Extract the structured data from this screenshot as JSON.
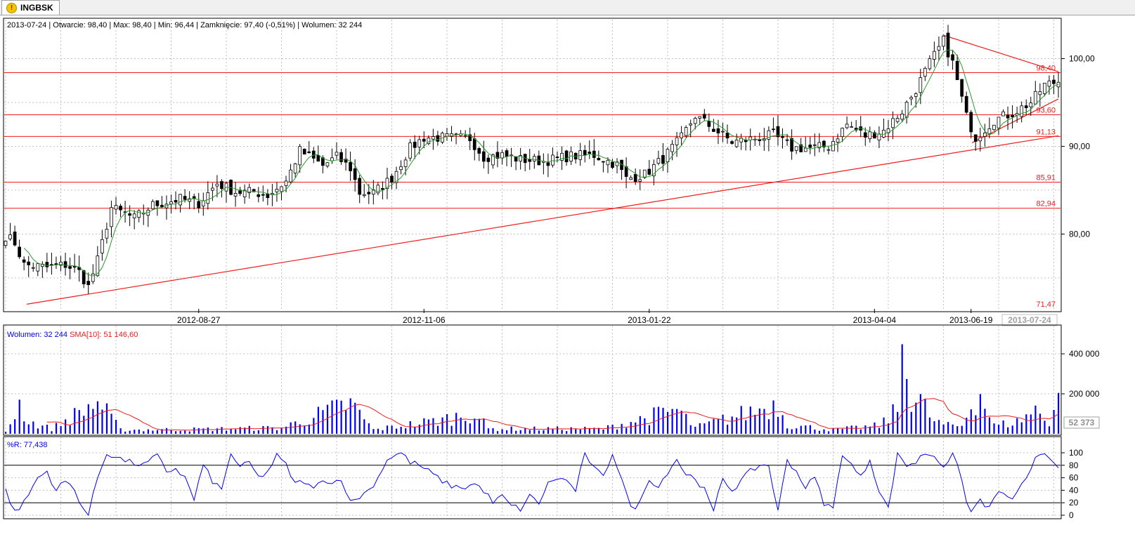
{
  "tab": {
    "label": "INGBSK",
    "icon": "warning-icon"
  },
  "header": {
    "date": "2013-07-24",
    "open_label": "Otwarcie: 98,40",
    "max_label": "Max: 98,40",
    "min_label": "Min: 96,44",
    "close_label": "Zamknięcie: 97,40 (-0,51%)",
    "volume_label": "Wolumen: 32 244"
  },
  "colors": {
    "candle": "#000000",
    "sma_price": "#2a9a2a",
    "support_lines": "#ee1c1c",
    "volume_bars": "#0000ee",
    "volume_sma": "#ee1c1c",
    "williams_r": "#0000ee",
    "grid": "#c0c0c0"
  },
  "chart_data": [
    {
      "type": "candlestick",
      "x_ticks": [
        "2012-08-27",
        "2012-11-06",
        "2013-01-22",
        "2013-04-04",
        "2013-06-19"
      ],
      "x_end_label": "2013-07-24",
      "y_ticks": [
        "100,00",
        "90,00",
        "80,00"
      ],
      "ylim": [
        71.47,
        103.0
      ],
      "horizontal_levels": [
        {
          "value": 98.4,
          "label": "98,40"
        },
        {
          "value": 93.6,
          "label": "93,60"
        },
        {
          "value": 91.13,
          "label": "91,13"
        },
        {
          "value": 85.91,
          "label": "85,91"
        },
        {
          "value": 82.94,
          "label": "82,94"
        },
        {
          "value": 71.47,
          "label": "71,47"
        }
      ],
      "trendlines": [
        {
          "from": [
            0.02,
            72.0
          ],
          "to": [
            1.0,
            91.2
          ]
        },
        {
          "from": [
            0.89,
            102.7
          ],
          "to": [
            1.0,
            98.5
          ]
        },
        {
          "from": [
            0.918,
            90.4
          ],
          "to": [
            1.0,
            95.4
          ]
        }
      ],
      "n_sessions": 230,
      "close_anchors": [
        [
          0,
          79.8
        ],
        [
          2,
          79.0
        ],
        [
          4,
          76.5
        ],
        [
          9,
          76.2
        ],
        [
          13,
          76.5
        ],
        [
          16,
          75.7
        ],
        [
          18,
          74.0
        ],
        [
          20,
          77.0
        ],
        [
          23,
          83.0
        ],
        [
          28,
          81.8
        ],
        [
          32,
          83.3
        ],
        [
          38,
          84.0
        ],
        [
          42,
          83.5
        ],
        [
          46,
          85.8
        ],
        [
          50,
          84.8
        ],
        [
          54,
          84.8
        ],
        [
          57,
          84.4
        ],
        [
          61,
          86.0
        ],
        [
          64,
          89.5
        ],
        [
          69,
          87.8
        ],
        [
          72,
          88.8
        ],
        [
          75,
          87.5
        ],
        [
          77,
          84.7
        ],
        [
          80,
          84.7
        ],
        [
          84,
          86.4
        ],
        [
          88,
          89.8
        ],
        [
          91,
          91.0
        ],
        [
          95,
          91.0
        ],
        [
          101,
          90.9
        ],
        [
          104,
          88.8
        ],
        [
          108,
          89.0
        ],
        [
          112,
          88.5
        ],
        [
          117,
          88.3
        ],
        [
          123,
          88.9
        ],
        [
          128,
          89.0
        ],
        [
          133,
          87.9
        ],
        [
          135,
          86.3
        ],
        [
          139,
          86.8
        ],
        [
          143,
          88.6
        ],
        [
          147,
          91.0
        ],
        [
          150,
          93.5
        ],
        [
          154,
          92.0
        ],
        [
          158,
          90.5
        ],
        [
          162,
          90.8
        ],
        [
          167,
          91.3
        ],
        [
          171,
          89.8
        ],
        [
          175,
          89.8
        ],
        [
          179,
          90.0
        ],
        [
          183,
          92.5
        ],
        [
          187,
          91.2
        ],
        [
          191,
          91.8
        ],
        [
          195,
          94.0
        ],
        [
          198,
          96.5
        ],
        [
          201,
          99.5
        ],
        [
          204,
          102.0
        ],
        [
          206,
          99.5
        ],
        [
          209,
          93.4
        ],
        [
          211,
          91.0
        ],
        [
          215,
          93.0
        ],
        [
          219,
          93.8
        ],
        [
          223,
          95.0
        ],
        [
          226,
          97.0
        ],
        [
          229,
          97.4
        ]
      ],
      "sma_label": "SMA"
    },
    {
      "type": "bar",
      "title": "Wolumen: 32 244",
      "sma_legend": "SMA[10]: 51 146,60",
      "y_ticks": [
        "400 000",
        "200 000"
      ],
      "last_value": "52 373",
      "ylim": [
        0,
        530000
      ],
      "volume_anchors": [
        [
          0,
          10000
        ],
        [
          3,
          150000
        ],
        [
          5,
          60000
        ],
        [
          10,
          25000
        ],
        [
          20,
          160000
        ],
        [
          25,
          20000
        ],
        [
          40,
          22000
        ],
        [
          60,
          30000
        ],
        [
          75,
          150000
        ],
        [
          80,
          20000
        ],
        [
          95,
          70000
        ],
        [
          102,
          105000
        ],
        [
          105,
          25000
        ],
        [
          130,
          25000
        ],
        [
          146,
          120000
        ],
        [
          150,
          30000
        ],
        [
          168,
          150000
        ],
        [
          170,
          45000
        ],
        [
          180,
          20000
        ],
        [
          190,
          40000
        ],
        [
          194,
          120000
        ],
        [
          195,
          450000
        ],
        [
          196,
          510000
        ],
        [
          197,
          150000
        ],
        [
          199,
          160000
        ],
        [
          202,
          60000
        ],
        [
          205,
          40000
        ],
        [
          208,
          40000
        ],
        [
          210,
          150000
        ],
        [
          212,
          200000
        ],
        [
          215,
          40000
        ],
        [
          220,
          60000
        ],
        [
          224,
          120000
        ],
        [
          227,
          60000
        ],
        [
          229,
          205000
        ]
      ]
    },
    {
      "type": "line",
      "title": "%R: 77,438",
      "y_ticks": [
        "100",
        "80",
        "60",
        "40",
        "20",
        "0"
      ],
      "ylim": [
        0,
        100
      ],
      "reference_levels": [
        80,
        20
      ],
      "wr_anchors": [
        [
          0,
          40
        ],
        [
          2,
          5
        ],
        [
          4,
          20
        ],
        [
          7,
          60
        ],
        [
          9,
          70
        ],
        [
          11,
          40
        ],
        [
          13,
          55
        ],
        [
          15,
          40
        ],
        [
          17,
          10
        ],
        [
          18,
          0
        ],
        [
          20,
          60
        ],
        [
          22,
          100
        ],
        [
          25,
          90
        ],
        [
          27,
          85
        ],
        [
          30,
          80
        ],
        [
          33,
          95
        ],
        [
          35,
          70
        ],
        [
          37,
          75
        ],
        [
          39,
          60
        ],
        [
          41,
          25
        ],
        [
          43,
          80
        ],
        [
          45,
          55
        ],
        [
          47,
          40
        ],
        [
          49,
          100
        ],
        [
          51,
          75
        ],
        [
          53,
          85
        ],
        [
          55,
          60
        ],
        [
          57,
          70
        ],
        [
          59,
          95
        ],
        [
          61,
          80
        ],
        [
          63,
          50
        ],
        [
          65,
          55
        ],
        [
          67,
          40
        ],
        [
          69,
          60
        ],
        [
          71,
          50
        ],
        [
          73,
          60
        ],
        [
          75,
          20
        ],
        [
          77,
          30
        ],
        [
          79,
          40
        ],
        [
          81,
          60
        ],
        [
          83,
          90
        ],
        [
          86,
          100
        ],
        [
          88,
          85
        ],
        [
          90,
          80
        ],
        [
          92,
          70
        ],
        [
          94,
          60
        ],
        [
          96,
          50
        ],
        [
          98,
          45
        ],
        [
          100,
          45
        ],
        [
          102,
          50
        ],
        [
          104,
          40
        ],
        [
          106,
          20
        ],
        [
          108,
          30
        ],
        [
          110,
          15
        ],
        [
          112,
          10
        ],
        [
          114,
          30
        ],
        [
          116,
          20
        ],
        [
          118,
          50
        ],
        [
          120,
          60
        ],
        [
          122,
          55
        ],
        [
          124,
          40
        ],
        [
          126,
          100
        ],
        [
          128,
          75
        ],
        [
          130,
          60
        ],
        [
          132,
          100
        ],
        [
          134,
          60
        ],
        [
          136,
          10
        ],
        [
          138,
          20
        ],
        [
          140,
          60
        ],
        [
          142,
          45
        ],
        [
          144,
          70
        ],
        [
          146,
          90
        ],
        [
          148,
          65
        ],
        [
          150,
          60
        ],
        [
          152,
          40
        ],
        [
          154,
          5
        ],
        [
          156,
          60
        ],
        [
          158,
          40
        ],
        [
          160,
          55
        ],
        [
          162,
          70
        ],
        [
          164,
          80
        ],
        [
          166,
          80
        ],
        [
          168,
          5
        ],
        [
          170,
          90
        ],
        [
          172,
          70
        ],
        [
          174,
          45
        ],
        [
          176,
          60
        ],
        [
          178,
          20
        ],
        [
          180,
          10
        ],
        [
          182,
          100
        ],
        [
          184,
          80
        ],
        [
          186,
          60
        ],
        [
          188,
          90
        ],
        [
          190,
          40
        ],
        [
          192,
          10
        ],
        [
          194,
          100
        ],
        [
          196,
          80
        ],
        [
          198,
          85
        ],
        [
          200,
          100
        ],
        [
          202,
          95
        ],
        [
          204,
          80
        ],
        [
          206,
          95
        ],
        [
          208,
          60
        ],
        [
          209,
          20
        ],
        [
          210,
          5
        ],
        [
          212,
          25
        ],
        [
          214,
          10
        ],
        [
          216,
          40
        ],
        [
          218,
          25
        ],
        [
          220,
          35
        ],
        [
          222,
          60
        ],
        [
          224,
          90
        ],
        [
          226,
          95
        ],
        [
          228,
          80
        ],
        [
          229,
          77.438
        ]
      ]
    }
  ]
}
